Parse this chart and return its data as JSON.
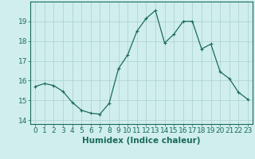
{
  "x": [
    0,
    1,
    2,
    3,
    4,
    5,
    6,
    7,
    8,
    9,
    10,
    11,
    12,
    13,
    14,
    15,
    16,
    17,
    18,
    19,
    20,
    21,
    22,
    23
  ],
  "y": [
    15.7,
    15.85,
    15.75,
    15.45,
    14.9,
    14.5,
    14.35,
    14.3,
    14.85,
    16.6,
    17.3,
    18.5,
    19.15,
    19.55,
    17.9,
    18.35,
    19.0,
    19.0,
    17.6,
    17.85,
    16.45,
    16.1,
    15.4,
    15.05
  ],
  "title": "",
  "xlabel": "Humidex (Indice chaleur)",
  "ylabel": "",
  "xlim": [
    -0.5,
    23.5
  ],
  "ylim": [
    13.8,
    20.0
  ],
  "yticks": [
    14,
    15,
    16,
    17,
    18,
    19
  ],
  "xticks": [
    0,
    1,
    2,
    3,
    4,
    5,
    6,
    7,
    8,
    9,
    10,
    11,
    12,
    13,
    14,
    15,
    16,
    17,
    18,
    19,
    20,
    21,
    22,
    23
  ],
  "line_color": "#1a6b5a",
  "marker": "+",
  "marker_size": 3,
  "bg_color": "#d0eeee",
  "grid_color": "#aacfcf",
  "axis_color": "#1a6b5a",
  "label_color": "#1a6b5a",
  "tick_label_fontsize": 6.5,
  "xlabel_fontsize": 7.5
}
